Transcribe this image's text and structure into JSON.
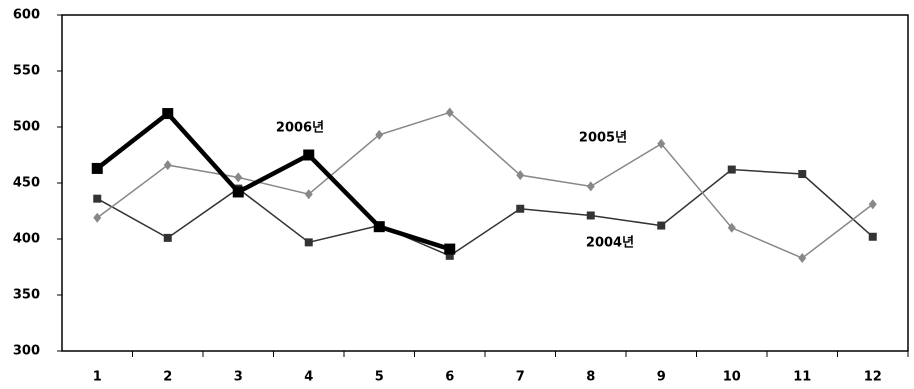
{
  "chart_data": {
    "type": "line",
    "categories": [
      "1",
      "2",
      "3",
      "4",
      "5",
      "6",
      "7",
      "8",
      "9",
      "10",
      "11",
      "12"
    ],
    "series": [
      {
        "name": "2004년",
        "color": "#333333",
        "marker": "square",
        "width": 1.5,
        "values": [
          436,
          401,
          445,
          397,
          412,
          385,
          427,
          421,
          412,
          462,
          458,
          402
        ]
      },
      {
        "name": "2005년",
        "color": "#888888",
        "marker": "diamond",
        "width": 1.5,
        "values": [
          419,
          466,
          455,
          440,
          493,
          513,
          457,
          447,
          485,
          410,
          383,
          431
        ]
      },
      {
        "name": "2006년",
        "color": "#000000",
        "marker": "square",
        "width": 4.5,
        "values": [
          463,
          512,
          442,
          475,
          411,
          391,
          null,
          null,
          null,
          null,
          null,
          null
        ]
      }
    ],
    "ylim": [
      300,
      600
    ],
    "yticks": [
      300,
      350,
      400,
      450,
      500,
      550,
      600
    ],
    "grid": false
  }
}
